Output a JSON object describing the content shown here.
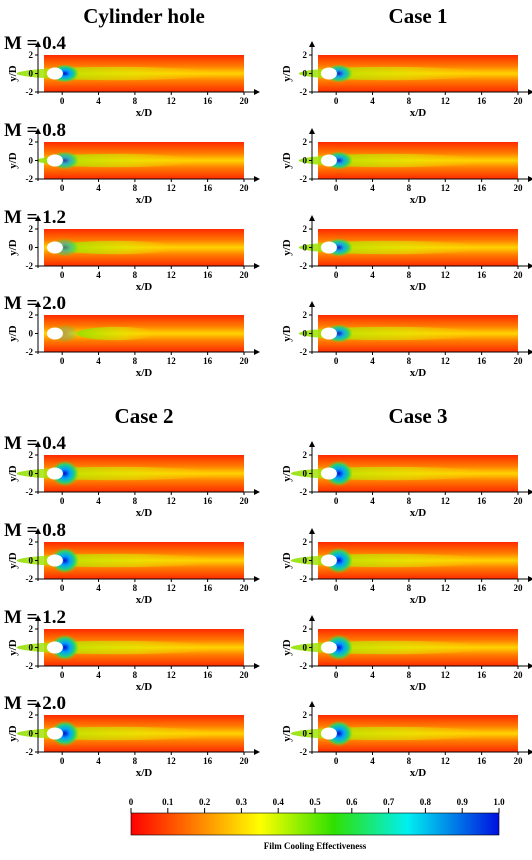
{
  "chart_data": {
    "type": "contour",
    "x_label": "x/D",
    "y_label": "y/D",
    "xlim": [
      -2,
      20
    ],
    "xticks": [
      0,
      4,
      8,
      12,
      16,
      20
    ],
    "ylim": [
      -2,
      2
    ],
    "yticks": [
      -2,
      0,
      2
    ],
    "blocks": [
      {
        "columns": [
          "Cylinder hole",
          "Case 1"
        ],
        "rows": [
          "M = 0.4",
          "M = 0.8",
          "M = 1.2",
          "M = 2.0"
        ]
      },
      {
        "columns": [
          "Case 2",
          "Case 3"
        ],
        "rows": [
          "M = 0.4",
          "M = 0.8",
          "M = 1.2",
          "M = 2.0"
        ]
      }
    ],
    "colorbar": {
      "label": "Film Cooling Effectiveness",
      "lim": [
        0,
        1
      ],
      "ticks": [
        0,
        0.1,
        0.2,
        0.3,
        0.4,
        0.5,
        0.6,
        0.7,
        0.8,
        0.9,
        {
          "value": 1,
          "label": "1.0"
        }
      ]
    }
  }
}
